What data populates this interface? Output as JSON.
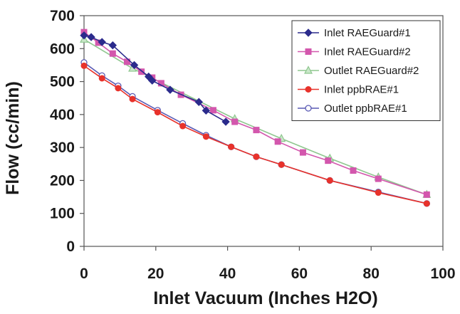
{
  "chart_data": {
    "type": "line",
    "title": "",
    "xlabel": "Inlet Vacuum (Inches H2O)",
    "ylabel": "Flow (cc/min)",
    "xlim": [
      0,
      100
    ],
    "ylim": [
      0,
      700
    ],
    "xticks": [
      0,
      20,
      40,
      60,
      80,
      100
    ],
    "yticks": [
      0,
      100,
      200,
      300,
      400,
      500,
      600,
      700
    ],
    "grid": false,
    "legend_position": "top-right",
    "series": [
      {
        "name": "Inlet RAEGuard#1",
        "color": "#2b2b8c",
        "marker": "diamond",
        "x": [
          0,
          2,
          5,
          8,
          14,
          18,
          19,
          24,
          32,
          34,
          39.5
        ],
        "y": [
          640,
          635,
          620,
          610,
          550,
          515,
          503,
          475,
          438,
          412,
          378
        ]
      },
      {
        "name": "Inlet RAEGuard#2",
        "color": "#d357ad",
        "marker": "square",
        "x": [
          0,
          4,
          8,
          12,
          16,
          19,
          21.5,
          27,
          36,
          42,
          48,
          54,
          61,
          68,
          75,
          82,
          95.5
        ],
        "y": [
          650,
          618,
          585,
          560,
          530,
          512,
          495,
          460,
          413,
          378,
          353,
          318,
          285,
          260,
          230,
          205,
          157
        ]
      },
      {
        "name": "Outlet RAEGuard#2",
        "color": "#8fc78f",
        "marker": "triangle",
        "x": [
          0,
          13.5,
          42,
          55,
          68.5,
          82,
          95.5
        ],
        "y": [
          628,
          540,
          387,
          327,
          267,
          210,
          157
        ]
      },
      {
        "name": "Inlet ppbRAE#1",
        "color": "#e8322b",
        "marker": "circle",
        "x": [
          0,
          5,
          9.5,
          13.5,
          20.5,
          27.5,
          34,
          41,
          48,
          55,
          68.5,
          82,
          95.5
        ],
        "y": [
          548,
          510,
          480,
          447,
          407,
          365,
          333,
          302,
          272,
          248,
          200,
          163,
          130
        ]
      },
      {
        "name": "Outlet ppbRAE#1",
        "color": "#5a5ab4",
        "marker": "open-circle",
        "x": [
          0,
          5,
          9.5,
          13.5,
          20.5,
          27.5,
          34,
          41,
          48,
          55,
          68.5,
          82,
          95.5
        ],
        "y": [
          558,
          518,
          487,
          455,
          413,
          373,
          337,
          302,
          272,
          248,
          200,
          165,
          130
        ]
      }
    ]
  }
}
